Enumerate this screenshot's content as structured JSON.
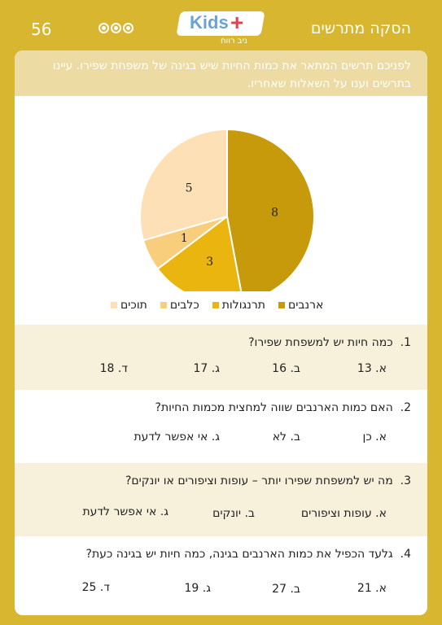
{
  "header": {
    "page_number": "56",
    "title": "הסקה מתרשים",
    "logo_text": "Kids",
    "logo_plus": "+",
    "logo_sub": "ניב רווח"
  },
  "intro": "לפניכם תרשים המתאר את כמות החיות שיש בגינה של משפחת שפירו. עיינו בתרשים וענו על השאלות שאחריו.",
  "chart_data": {
    "type": "pie",
    "categories": [
      "ארנבים",
      "תרנגולות",
      "כלבים",
      "תוכים"
    ],
    "values": [
      8,
      3,
      1,
      5
    ],
    "colors": [
      "#c79a0b",
      "#ebb50f",
      "#f8cd7b",
      "#fde0b6"
    ],
    "labels": [
      "8",
      "3",
      "1",
      "5"
    ],
    "legend_position": "bottom"
  },
  "questions": [
    {
      "number": "1.",
      "text": "כמה חיות יש למשפחת שפירו?",
      "options": [
        "א. 13",
        "ב. 16",
        "ג. 17",
        "ד. 18"
      ]
    },
    {
      "number": "2.",
      "text": "האם כמות הארנבים שווה למחצית מכמות החיות?",
      "options": [
        "א. כן",
        "ב. לא",
        "ג. אי אפשר לדעת"
      ]
    },
    {
      "number": "3.",
      "text": "מה יש למשפחת שפירו יותר – עופות וציפורים או יונקים?",
      "options": [
        "א. עופות וציפורים",
        "ב. יונקים",
        "ג. אי אפשר לדעת"
      ]
    },
    {
      "number": "4.",
      "text": "גלעד הכפיל את כמות הארנבים בגינה, כמה חיות יש בגינה כעת?",
      "options": [
        "א. 21",
        "ב. 27",
        "ג. 19",
        "ד. 25"
      ]
    }
  ]
}
